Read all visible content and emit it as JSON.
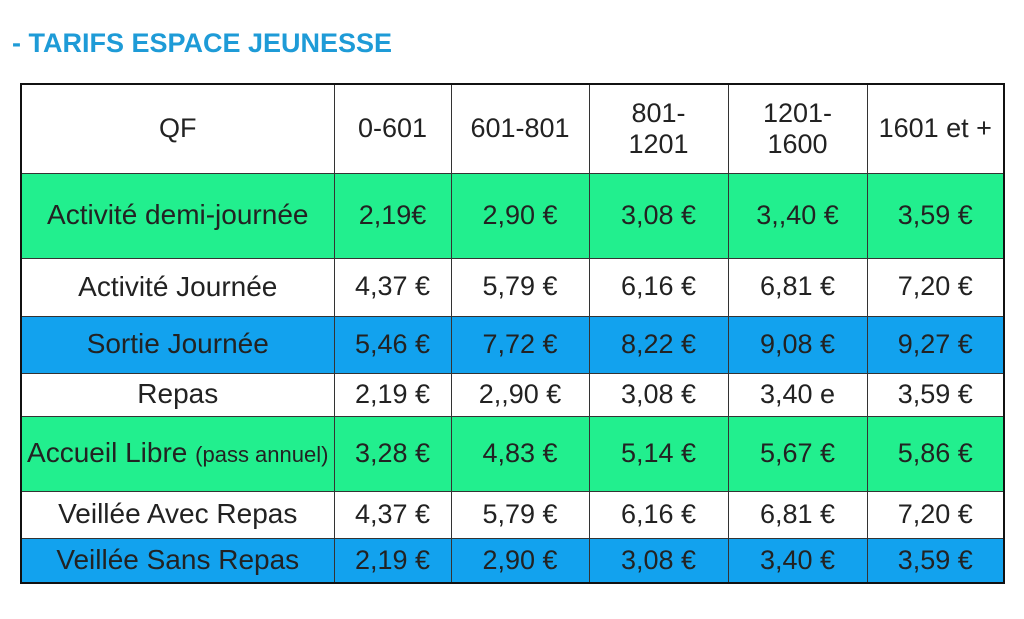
{
  "title": "- TARIFS ESPACE JEUNESSE",
  "table": {
    "header": [
      "QF",
      "0-601",
      "601-801",
      "801-1201",
      "1201-1600",
      "1601 et +"
    ],
    "rows": [
      {
        "label": "Activité demi-journée",
        "color": "#22ef8e",
        "cells": [
          "2,19€",
          "2,90 €",
          "3,08 €",
          "3,,40 €",
          "3,59 €"
        ]
      },
      {
        "label": "Activité Journée",
        "color": "#ffffff",
        "cells": [
          "4,37 €",
          "5,79 €",
          "6,16 €",
          "6,81 €",
          "7,20 €"
        ]
      },
      {
        "label": "Sortie Journée",
        "color": "#12a2ee",
        "cells": [
          "5,46 €",
          "7,72 €",
          "8,22 €",
          "9,08 €",
          "9,27 €"
        ]
      },
      {
        "label": "Repas",
        "color": "#ffffff",
        "cells": [
          "2,19 €",
          "2,,90 €",
          "3,08 €",
          "3,40 e",
          "3,59 €"
        ]
      },
      {
        "label": "Accueil Libre",
        "note": "(pass annuel)",
        "color": "#22ef8e",
        "cells": [
          "3,28 €",
          "4,83 €",
          "5,14 €",
          "5,67 €",
          "5,86 €"
        ]
      },
      {
        "label": "Veillée Avec Repas",
        "color": "#ffffff",
        "cells": [
          "4,37 €",
          "5,79 €",
          "6,16 €",
          "6,81 €",
          "7,20 €"
        ]
      },
      {
        "label": "Veillée Sans Repas",
        "color": "#12a2ee",
        "cells": [
          "2,19 €",
          "2,90 €",
          "3,08 €",
          "3,40 €",
          "3,59 €"
        ]
      }
    ]
  }
}
